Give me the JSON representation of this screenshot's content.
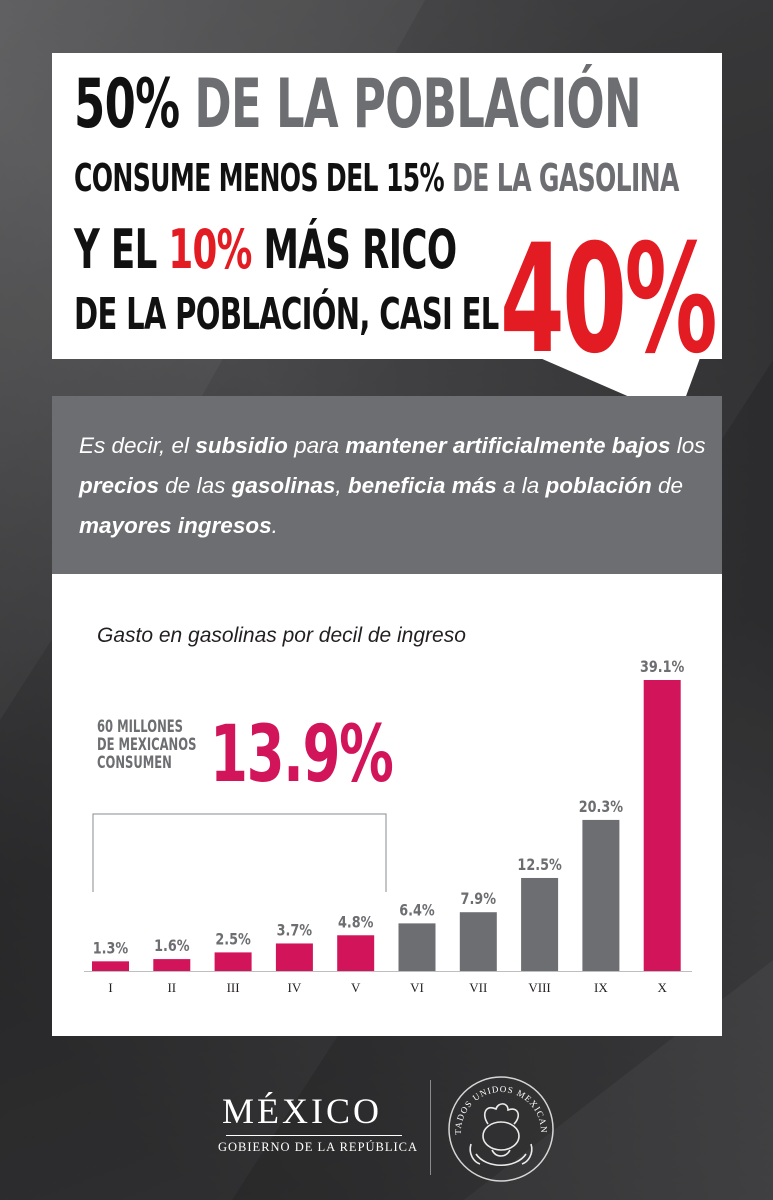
{
  "headline": {
    "line1_a": "50%",
    "line1_b": " DE LA POBLACIÓN",
    "line2_a": "CONSUME MENOS DEL 15%",
    "line2_b": " DE LA GASOLINA",
    "line3_a": "Y EL ",
    "line3_b": "10%",
    "line3_c": " MÁS RICO",
    "line4": "DE LA POBLACIÓN, CASI EL",
    "big_value": "40%"
  },
  "explanation": {
    "t1": "Es decir, el ",
    "b1": "subsidio",
    "t2": " para ",
    "b2": "mantener artificialmente bajos",
    "t3": " los ",
    "b3": "precios",
    "t4": " de las ",
    "b4": "gasolinas",
    "t5": ", ",
    "b5": "beneficia más",
    "t6": " a la ",
    "b6": "población",
    "t7": " de ",
    "b7": "mayores ingresos",
    "t8": "."
  },
  "callout": {
    "line1": "60 MILLONES",
    "line2": "DE MEXICANOS",
    "line3": "CONSUMEN",
    "value": "13.9%"
  },
  "colors": {
    "red": "#e31b23",
    "magenta": "#d2145a",
    "gray_bar": "#6d6e71",
    "dark_text": "#111111"
  },
  "chart_data": {
    "type": "bar",
    "title": "Gasto en gasolinas por decil de ingreso",
    "categories": [
      "I",
      "II",
      "III",
      "IV",
      "V",
      "VI",
      "VII",
      "VIII",
      "IX",
      "X"
    ],
    "values": [
      1.3,
      1.6,
      2.5,
      3.7,
      4.8,
      6.4,
      7.9,
      12.5,
      20.3,
      39.1
    ],
    "value_labels": [
      "1.3%",
      "1.6%",
      "2.5%",
      "3.7%",
      "4.8%",
      "6.4%",
      "7.9%",
      "12.5%",
      "20.3%",
      "39.1%"
    ],
    "bar_colors": [
      "#d2145a",
      "#d2145a",
      "#d2145a",
      "#d2145a",
      "#d2145a",
      "#6d6e71",
      "#6d6e71",
      "#6d6e71",
      "#6d6e71",
      "#d2145a"
    ],
    "xlabel": "",
    "ylabel": "",
    "ylim": [
      0,
      39.1
    ],
    "grid": false,
    "legend": "none"
  },
  "footer": {
    "country": "MÉXICO",
    "government": "GOBIERNO DE LA REPÚBLICA",
    "seal_text": "ESTADOS UNIDOS MEXICANOS"
  }
}
